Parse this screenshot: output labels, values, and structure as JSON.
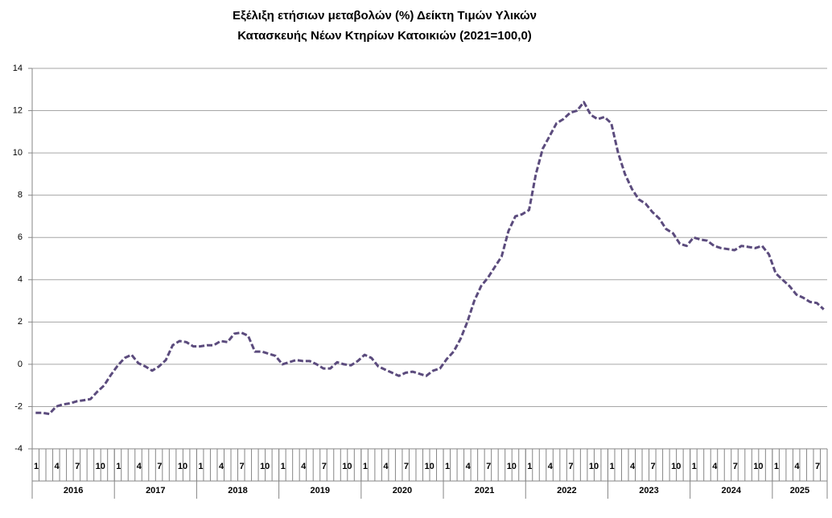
{
  "chart_data": {
    "type": "line",
    "title": [
      "Εξέλιξη ετήσιων μεταβολών (%) Δείκτη Τιμών Υλικών",
      "Κατασκευής Νέων Κτηρίων Κατοικιών (2021=100,0)"
    ],
    "categories": [
      "1",
      null,
      null,
      "4",
      null,
      null,
      "7",
      null,
      null,
      "10",
      null,
      null,
      "1",
      null,
      null,
      "4",
      null,
      null,
      "7",
      null,
      null,
      "10",
      null,
      null,
      "1",
      null,
      null,
      "4",
      null,
      null,
      "7",
      null,
      null,
      "10",
      null,
      null,
      "1",
      null,
      null,
      "4",
      null,
      null,
      "7",
      null,
      null,
      "10",
      null,
      null,
      "1",
      null,
      null,
      "4",
      null,
      null,
      "7",
      null,
      null,
      "10",
      null,
      null,
      "1",
      null,
      null,
      "4",
      null,
      null,
      "7",
      null,
      null,
      "10",
      null,
      null,
      "1",
      null,
      null,
      "4",
      null,
      null,
      "7",
      null,
      null,
      "10",
      null,
      null,
      "1",
      null,
      null,
      "4",
      null,
      null,
      "7",
      null,
      null,
      "10",
      null,
      null,
      "1",
      null,
      null,
      "4",
      null,
      null,
      "7",
      null,
      null,
      "10",
      null,
      null,
      "1",
      null,
      null,
      "4",
      null,
      null,
      "7",
      null
    ],
    "years": [
      "2016",
      "2017",
      "2018",
      "2019",
      "2020",
      "2021",
      "2022",
      "2023",
      "2024",
      "2025"
    ],
    "series": [
      {
        "color": "#5b4b7d",
        "values": [
          -2.3,
          -2.3,
          -2.35,
          -2.0,
          -1.9,
          -1.85,
          -1.75,
          -1.7,
          -1.65,
          -1.3,
          -1.0,
          -0.5,
          -0.05,
          0.3,
          0.45,
          0.05,
          -0.1,
          -0.3,
          -0.1,
          0.2,
          0.9,
          1.1,
          1.05,
          0.85,
          0.85,
          0.9,
          0.9,
          1.1,
          1.05,
          1.45,
          1.5,
          1.35,
          0.6,
          0.6,
          0.5,
          0.4,
          0.0,
          0.1,
          0.2,
          0.15,
          0.15,
          0.0,
          -0.2,
          -0.2,
          0.1,
          0.0,
          -0.05,
          0.15,
          0.45,
          0.3,
          -0.1,
          -0.25,
          -0.4,
          -0.55,
          -0.4,
          -0.35,
          -0.45,
          -0.55,
          -0.3,
          -0.2,
          0.25,
          0.6,
          1.2,
          2.0,
          3.0,
          3.7,
          4.1,
          4.6,
          5.1,
          6.3,
          7.0,
          7.1,
          7.3,
          9.0,
          10.2,
          10.8,
          11.4,
          11.6,
          11.9,
          12.0,
          12.4,
          11.8,
          11.6,
          11.7,
          11.4,
          10.0,
          9.0,
          8.3,
          7.8,
          7.6,
          7.2,
          6.9,
          6.4,
          6.2,
          5.7,
          5.6,
          6.0,
          5.9,
          5.85,
          5.6,
          5.5,
          5.45,
          5.4,
          5.6,
          5.55,
          5.5,
          5.6,
          5.2,
          4.3,
          4.0,
          3.7,
          3.3,
          3.15,
          2.95,
          2.9,
          2.6
        ]
      }
    ],
    "ylim": [
      -4,
      14
    ],
    "yticks": [
      -4,
      -2,
      0,
      2,
      4,
      6,
      8,
      10,
      12,
      14
    ],
    "grid": true
  }
}
